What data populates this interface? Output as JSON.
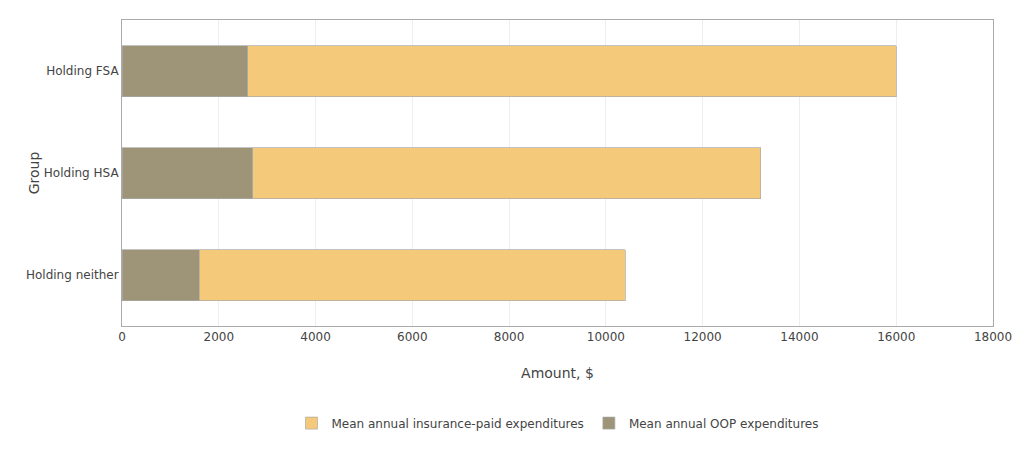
{
  "chart_data": {
    "type": "bar",
    "orientation": "horizontal",
    "stacked": true,
    "categories": [
      "Holding FSA",
      "Holding HSA",
      "Holding neither"
    ],
    "series": [
      {
        "name": "Mean annual OOP expenditures",
        "color": "#9e9478",
        "values": [
          2600,
          2700,
          1600
        ]
      },
      {
        "name": "Mean annual insurance-paid expenditures",
        "color": "#f5c97a",
        "values": [
          13400,
          10500,
          8800
        ]
      }
    ],
    "xlabel": "Amount, $",
    "ylabel": "Group",
    "xlim": [
      0,
      18000
    ],
    "xticks": [
      0,
      2000,
      4000,
      6000,
      8000,
      10000,
      12000,
      14000,
      16000,
      18000
    ],
    "grid": "x",
    "legend": "bottom"
  }
}
